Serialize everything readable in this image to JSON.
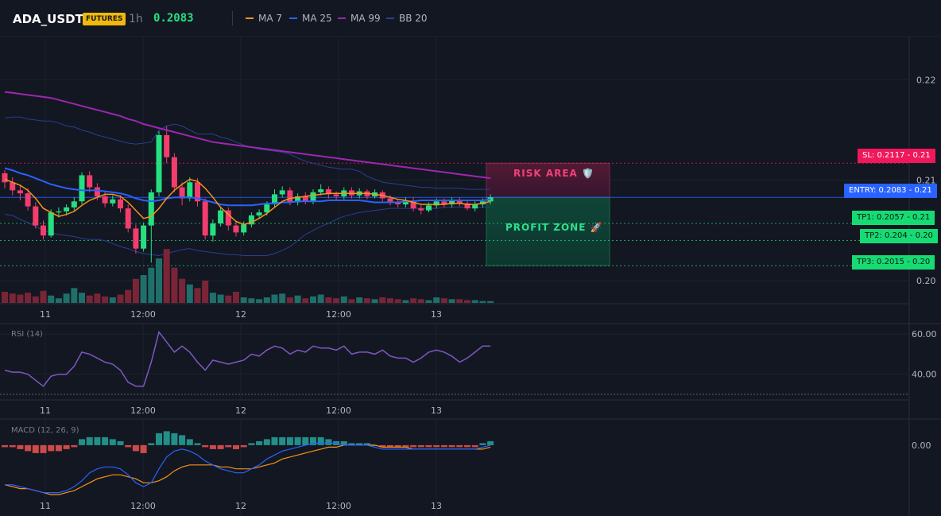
{
  "header": {
    "symbol": "ADA_USDT",
    "badge": "FUTURES",
    "timeframe": "1h",
    "last_price": "0.2083",
    "legend": [
      {
        "name": "MA 7",
        "color": "#f7931a"
      },
      {
        "name": "MA 25",
        "color": "#2962ff"
      },
      {
        "name": "MA 99",
        "color": "#9c27b0"
      },
      {
        "name": "BB 20",
        "color": "#2a3f8f"
      }
    ]
  },
  "colors": {
    "up": "#26e07f",
    "down": "#f23d6d",
    "vol_up": "#1f6f6a",
    "vol_down": "#7a2537",
    "sl": "#f0185a",
    "entry": "#2962ff",
    "tp": "#16db73",
    "rsi": "#7e57c2",
    "macd_line": "#2962ff",
    "signal_line": "#f7931a"
  },
  "price_labels": {
    "sl": "SL: 0.2117",
    "sl_axis": "0.21",
    "entry": "ENTRY: 0.2083",
    "entry_axis": "0.21",
    "tp1": "TP1: 0.2057",
    "tp1_axis": "0.21",
    "tp2": "TP2: 0.204",
    "tp2_axis": "0.20",
    "tp3": "TP3: 0.2015",
    "tp3_axis": "0.20"
  },
  "zones": {
    "risk_label": "RISK AREA 🛡️",
    "profit_label": "PROFIT ZONE 🚀"
  },
  "panels": {
    "rsi_label": "RSI (14)",
    "macd_label": "MACD (12, 26, 9)"
  },
  "chart_data": [
    {
      "type": "candlestick",
      "title": "ADA_USDT 1h",
      "x_ticks": [
        "11",
        "12:00",
        "12",
        "12:00",
        "13"
      ],
      "y_ticks": [
        "0.22",
        "0.21",
        "0.20"
      ],
      "ylim": [
        0.1985,
        0.2232
      ],
      "levels": {
        "sl": 0.2117,
        "entry": 0.2083,
        "tp1": 0.2057,
        "tp2": 0.204,
        "tp3": 0.2015
      },
      "candles": [
        [
          0.2107,
          0.2098,
          0.211,
          0.2092
        ],
        [
          0.2098,
          0.209,
          0.2103,
          0.2085
        ],
        [
          0.209,
          0.2087,
          0.2095,
          0.208
        ],
        [
          0.2087,
          0.2074,
          0.2092,
          0.207
        ],
        [
          0.2074,
          0.2055,
          0.2078,
          0.2052
        ],
        [
          0.2055,
          0.2045,
          0.206,
          0.2041
        ],
        [
          0.2045,
          0.2068,
          0.2071,
          0.2043
        ],
        [
          0.2068,
          0.2069,
          0.2073,
          0.2063
        ],
        [
          0.2069,
          0.2073,
          0.2076,
          0.2065
        ],
        [
          0.2073,
          0.2079,
          0.2083,
          0.207
        ],
        [
          0.2079,
          0.2105,
          0.2108,
          0.2076
        ],
        [
          0.2105,
          0.2093,
          0.2109,
          0.2088
        ],
        [
          0.2093,
          0.2084,
          0.2097,
          0.208
        ],
        [
          0.2084,
          0.2077,
          0.2089,
          0.2073
        ],
        [
          0.2077,
          0.2081,
          0.2085,
          0.2074
        ],
        [
          0.2081,
          0.2072,
          0.2085,
          0.2068
        ],
        [
          0.2072,
          0.2052,
          0.2076,
          0.2048
        ],
        [
          0.2052,
          0.2032,
          0.2056,
          0.2027
        ],
        [
          0.2032,
          0.2055,
          0.2058,
          0.2029
        ],
        [
          0.2055,
          0.2088,
          0.2091,
          0.2018
        ],
        [
          0.2088,
          0.2145,
          0.2149,
          0.2084
        ],
        [
          0.2145,
          0.2123,
          0.2154,
          0.2117
        ],
        [
          0.2123,
          0.2093,
          0.2127,
          0.2088
        ],
        [
          0.2093,
          0.2082,
          0.2098,
          0.2075
        ],
        [
          0.2082,
          0.2098,
          0.2103,
          0.2079
        ],
        [
          0.2098,
          0.2079,
          0.2102,
          0.2074
        ],
        [
          0.2079,
          0.2045,
          0.2082,
          0.2041
        ],
        [
          0.2045,
          0.2057,
          0.2061,
          0.2039
        ],
        [
          0.2057,
          0.207,
          0.2073,
          0.2054
        ],
        [
          0.207,
          0.2055,
          0.2073,
          0.205
        ],
        [
          0.2055,
          0.2048,
          0.2059,
          0.2044
        ],
        [
          0.2048,
          0.2056,
          0.2059,
          0.2045
        ],
        [
          0.2056,
          0.2065,
          0.2068,
          0.2053
        ],
        [
          0.2065,
          0.2068,
          0.2071,
          0.2062
        ],
        [
          0.2068,
          0.2076,
          0.2079,
          0.2065
        ],
        [
          0.2076,
          0.2086,
          0.2091,
          0.2073
        ],
        [
          0.2086,
          0.209,
          0.2094,
          0.2083
        ],
        [
          0.209,
          0.2078,
          0.2093,
          0.2075
        ],
        [
          0.2078,
          0.2084,
          0.2087,
          0.2075
        ],
        [
          0.2084,
          0.2079,
          0.2088,
          0.2076
        ],
        [
          0.2079,
          0.2088,
          0.2091,
          0.2076
        ],
        [
          0.2088,
          0.2091,
          0.2096,
          0.2085
        ],
        [
          0.2091,
          0.2086,
          0.2094,
          0.2082
        ],
        [
          0.2086,
          0.2084,
          0.2089,
          0.208
        ],
        [
          0.2084,
          0.209,
          0.2093,
          0.2081
        ],
        [
          0.209,
          0.2085,
          0.2093,
          0.2082
        ],
        [
          0.2085,
          0.2089,
          0.2092,
          0.2082
        ],
        [
          0.2089,
          0.2084,
          0.2091,
          0.2081
        ],
        [
          0.2084,
          0.2088,
          0.2091,
          0.2082
        ],
        [
          0.2088,
          0.2082,
          0.209,
          0.2079
        ],
        [
          0.2082,
          0.2078,
          0.2085,
          0.2075
        ],
        [
          0.2078,
          0.2076,
          0.2081,
          0.2073
        ],
        [
          0.2076,
          0.208,
          0.2083,
          0.2073
        ],
        [
          0.208,
          0.2072,
          0.2083,
          0.2069
        ],
        [
          0.2072,
          0.207,
          0.2075,
          0.2066
        ],
        [
          0.207,
          0.2075,
          0.2078,
          0.2068
        ],
        [
          0.2075,
          0.2079,
          0.2082,
          0.2072
        ],
        [
          0.2079,
          0.2076,
          0.2082,
          0.2073
        ],
        [
          0.2076,
          0.208,
          0.2083,
          0.2073
        ],
        [
          0.208,
          0.2077,
          0.2083,
          0.2074
        ],
        [
          0.2077,
          0.2072,
          0.208,
          0.207
        ],
        [
          0.2072,
          0.2076,
          0.2079,
          0.2069
        ],
        [
          0.2076,
          0.2079,
          0.2082,
          0.2073
        ],
        [
          0.2079,
          0.2083,
          0.2086,
          0.2076
        ]
      ],
      "volume": [
        12,
        10,
        9,
        11,
        7,
        13,
        8,
        5,
        10,
        16,
        11,
        8,
        10,
        7,
        6,
        9,
        14,
        26,
        30,
        38,
        48,
        58,
        38,
        26,
        20,
        16,
        24,
        11,
        9,
        8,
        12,
        6,
        5,
        4,
        6,
        9,
        10,
        6,
        8,
        5,
        7,
        9,
        6,
        5,
        7,
        4,
        6,
        5,
        4,
        6,
        5,
        4,
        3,
        5,
        4,
        3,
        6,
        5,
        4,
        4,
        3,
        3,
        2,
        2
      ],
      "ma7": [
        0.2101,
        0.2098,
        0.2095,
        0.209,
        0.2082,
        0.2072,
        0.2068,
        0.2064,
        0.2066,
        0.2069,
        0.2075,
        0.208,
        0.2083,
        0.2086,
        0.2086,
        0.2084,
        0.2078,
        0.207,
        0.2062,
        0.2064,
        0.2072,
        0.2082,
        0.209,
        0.2096,
        0.2101,
        0.2099,
        0.2092,
        0.2083,
        0.2073,
        0.2066,
        0.2059,
        0.2056,
        0.2058,
        0.2062,
        0.2067,
        0.2073,
        0.2079,
        0.2082,
        0.2083,
        0.2084,
        0.2085,
        0.2086,
        0.2087,
        0.2087,
        0.2087,
        0.2087,
        0.2087,
        0.2087,
        0.2086,
        0.2085,
        0.2083,
        0.2081,
        0.208,
        0.2078,
        0.2076,
        0.2076,
        0.2076,
        0.2076,
        0.2077,
        0.2077,
        0.2076,
        0.2076,
        0.2077,
        0.2079
      ],
      "ma25": [
        0.2112,
        0.211,
        0.2107,
        0.2105,
        0.2102,
        0.2099,
        0.2096,
        0.2094,
        0.2092,
        0.2091,
        0.209,
        0.209,
        0.209,
        0.2089,
        0.2088,
        0.2087,
        0.2085,
        0.2082,
        0.208,
        0.2079,
        0.208,
        0.2082,
        0.2083,
        0.2083,
        0.2083,
        0.2082,
        0.208,
        0.2078,
        0.2076,
        0.2075,
        0.2075,
        0.2075,
        0.2075,
        0.2076,
        0.2077,
        0.2077,
        0.2078,
        0.2078,
        0.2079,
        0.2079,
        0.2079,
        0.2079,
        0.208,
        0.208,
        0.208,
        0.208,
        0.208,
        0.2079,
        0.2078,
        0.2078,
        0.2078,
        0.2078,
        0.2079,
        0.2079,
        0.208,
        0.208,
        0.208,
        0.208,
        0.208,
        0.208,
        0.208,
        0.208,
        0.208,
        0.2081
      ],
      "ma99": [
        0.2188,
        0.2187,
        0.2186,
        0.2185,
        0.2184,
        0.2183,
        0.2182,
        0.218,
        0.2178,
        0.2176,
        0.2174,
        0.2172,
        0.217,
        0.2168,
        0.2166,
        0.2164,
        0.2161,
        0.2159,
        0.2156,
        0.2154,
        0.2152,
        0.215,
        0.2148,
        0.2146,
        0.2144,
        0.2142,
        0.214,
        0.2138,
        0.2137,
        0.2136,
        0.2135,
        0.2134,
        0.2133,
        0.2132,
        0.2131,
        0.213,
        0.2129,
        0.2128,
        0.2127,
        0.2126,
        0.2125,
        0.2124,
        0.2123,
        0.2122,
        0.2121,
        0.212,
        0.2119,
        0.2118,
        0.2117,
        0.2116,
        0.2115,
        0.2114,
        0.2113,
        0.2112,
        0.2111,
        0.211,
        0.2109,
        0.2108,
        0.2107,
        0.2106,
        0.2105,
        0.2104,
        0.2103,
        0.2102
      ],
      "bb_upper": [
        0.2162,
        0.2163,
        0.2163,
        0.2161,
        0.216,
        0.2159,
        0.2159,
        0.2157,
        0.2154,
        0.2153,
        0.215,
        0.2148,
        0.2145,
        0.2143,
        0.2141,
        0.2139,
        0.2137,
        0.2136,
        0.2137,
        0.2138,
        0.215,
        0.2154,
        0.2156,
        0.2154,
        0.215,
        0.2146,
        0.2146,
        0.2146,
        0.2143,
        0.2141,
        0.2138,
        0.2135,
        0.2133,
        0.2131,
        0.213,
        0.2129,
        0.2128,
        0.2126,
        0.2122,
        0.2119,
        0.2117,
        0.2115,
        0.2113,
        0.2112,
        0.2111,
        0.2111,
        0.2109,
        0.2104,
        0.2101,
        0.2098,
        0.2097,
        0.2096,
        0.2095,
        0.2094,
        0.2093,
        0.2093,
        0.2092,
        0.2092,
        0.2092,
        0.2092,
        0.2091,
        0.2091,
        0.2091,
        0.2091
      ],
      "bb_lower": [
        0.2066,
        0.2065,
        0.2061,
        0.2058,
        0.2054,
        0.205,
        0.2048,
        0.2046,
        0.2045,
        0.2044,
        0.2042,
        0.2041,
        0.2041,
        0.204,
        0.2037,
        0.2034,
        0.2032,
        0.2029,
        0.2027,
        0.2026,
        0.2025,
        0.2027,
        0.2029,
        0.2031,
        0.2032,
        0.203,
        0.2029,
        0.2028,
        0.2027,
        0.2026,
        0.2026,
        0.2025,
        0.2025,
        0.2025,
        0.2025,
        0.2027,
        0.203,
        0.2034,
        0.204,
        0.2046,
        0.205,
        0.2054,
        0.2057,
        0.2061,
        0.2064,
        0.2066,
        0.2068,
        0.2069,
        0.207,
        0.2071,
        0.2072,
        0.2072,
        0.2072,
        0.2072,
        0.2072,
        0.2072,
        0.2072,
        0.2073,
        0.2073,
        0.2073,
        0.2073,
        0.2073,
        0.2073,
        0.2073
      ]
    },
    {
      "type": "line",
      "title": "RSI (14)",
      "y_ticks": [
        "60.00",
        "40.00"
      ],
      "ylim": [
        28,
        64
      ],
      "values": [
        42,
        41,
        41,
        40,
        37,
        34,
        39,
        40,
        40,
        44,
        51,
        50,
        48,
        46,
        45,
        42,
        36,
        34,
        34,
        46,
        61,
        56,
        51,
        54,
        51,
        46,
        42,
        47,
        46,
        45,
        46,
        47,
        50,
        49,
        52,
        54,
        53,
        50,
        52,
        51,
        54,
        53,
        53,
        52,
        54,
        50,
        51,
        51,
        50,
        52,
        49,
        48,
        48,
        46,
        48,
        51,
        52,
        51,
        49,
        46,
        48,
        51,
        54,
        54
      ],
      "reference_line": 30
    },
    {
      "type": "bar",
      "title": "MACD (12, 26, 9)",
      "y_ticks": [
        "0.00"
      ],
      "ylim": [
        -0.0035,
        0.0012
      ],
      "histogram": [
        -0.0001,
        -0.0001,
        -0.0002,
        -0.0003,
        -0.0004,
        -0.0004,
        -0.0003,
        -0.0003,
        -0.0002,
        -0.0001,
        0.0003,
        0.0004,
        0.0004,
        0.0004,
        0.0003,
        0.0002,
        -0.0001,
        -0.0003,
        -0.0004,
        0.0001,
        0.0006,
        0.0007,
        0.0006,
        0.0005,
        0.0003,
        0.0001,
        -0.0001,
        -0.0002,
        -0.0002,
        -0.0001,
        -0.0002,
        -0.0001,
        0.0001,
        0.0002,
        0.0003,
        0.0004,
        0.0004,
        0.0004,
        0.0004,
        0.0004,
        0.0004,
        0.0004,
        0.0003,
        0.0002,
        0.0002,
        0.0001,
        0.0001,
        0.0001,
        0.0,
        -0.0001,
        -0.0001,
        -0.0001,
        -0.0001,
        -0.0001,
        -0.0001,
        -0.0001,
        -0.0001,
        -0.0001,
        -0.0001,
        -0.0001,
        -0.0001,
        -0.0001,
        0.0001,
        0.0002
      ],
      "macd": [
        -0.002,
        -0.002,
        -0.0021,
        -0.0022,
        -0.0023,
        -0.0024,
        -0.0024,
        -0.0024,
        -0.0023,
        -0.0021,
        -0.0018,
        -0.0014,
        -0.0012,
        -0.0011,
        -0.0011,
        -0.0012,
        -0.0015,
        -0.0019,
        -0.0021,
        -0.0019,
        -0.0012,
        -0.0006,
        -0.0003,
        -0.0002,
        -0.0003,
        -0.0005,
        -0.0008,
        -0.001,
        -0.0012,
        -0.0013,
        -0.0014,
        -0.0014,
        -0.0012,
        -0.001,
        -0.0007,
        -0.0005,
        -0.0003,
        -0.0002,
        -0.0001,
        0.0,
        0.0001,
        0.0001,
        0.0001,
        0.0001,
        0.0,
        0.0,
        0.0,
        0.0,
        -0.0001,
        -0.0002,
        -0.0002,
        -0.0002,
        -0.0002,
        -0.0002,
        -0.0002,
        -0.0002,
        -0.0002,
        -0.0002,
        -0.0002,
        -0.0002,
        -0.0002,
        -0.0002,
        -0.0001,
        0.0
      ],
      "signal": [
        -0.002,
        -0.0021,
        -0.0022,
        -0.0022,
        -0.0023,
        -0.0024,
        -0.0025,
        -0.0025,
        -0.0024,
        -0.0023,
        -0.0021,
        -0.0019,
        -0.0017,
        -0.0016,
        -0.0015,
        -0.0015,
        -0.0016,
        -0.0017,
        -0.0019,
        -0.0019,
        -0.0018,
        -0.0016,
        -0.0013,
        -0.0011,
        -0.001,
        -0.001,
        -0.001,
        -0.001,
        -0.0011,
        -0.0011,
        -0.0012,
        -0.0012,
        -0.0012,
        -0.0011,
        -0.001,
        -0.0009,
        -0.0007,
        -0.0006,
        -0.0005,
        -0.0004,
        -0.0003,
        -0.0002,
        -0.0001,
        -0.0001,
        0.0,
        0.0,
        0.0,
        0.0,
        0.0,
        -0.0001,
        -0.0001,
        -0.0001,
        -0.0001,
        -0.0002,
        -0.0002,
        -0.0002,
        -0.0002,
        -0.0002,
        -0.0002,
        -0.0002,
        -0.0002,
        -0.0002,
        -0.0002,
        -0.0001
      ]
    }
  ]
}
